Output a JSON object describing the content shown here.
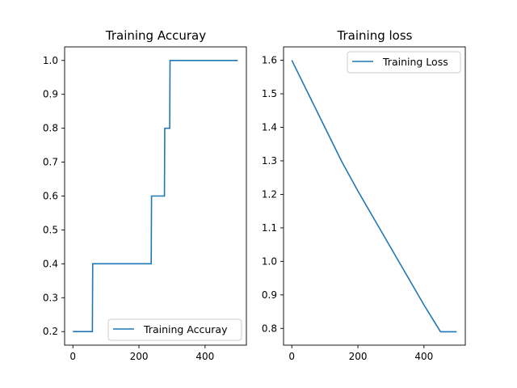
{
  "chart_data": [
    {
      "type": "line",
      "title": "Training Accuray",
      "xlim": [
        -25,
        525
      ],
      "ylim": [
        0.16,
        1.04
      ],
      "xticks": [
        0,
        200,
        400
      ],
      "yticks": [
        0.2,
        0.3,
        0.4,
        0.5,
        0.6,
        0.7,
        0.8,
        0.9,
        1.0
      ],
      "xtick_labels": [
        "0",
        "200",
        "400"
      ],
      "ytick_labels": [
        "0.2",
        "0.3",
        "0.4",
        "0.5",
        "0.6",
        "0.7",
        "0.8",
        "0.9",
        "1.0"
      ],
      "legend_loc": "lower-right",
      "color": "#1f77b4",
      "series": [
        {
          "name": "Training Accuray",
          "x": [
            0,
            59,
            60,
            237,
            238,
            277,
            278,
            293,
            294,
            499
          ],
          "y": [
            0.2,
            0.2,
            0.4,
            0.4,
            0.6,
            0.6,
            0.8,
            0.8,
            1.0,
            1.0
          ]
        }
      ]
    },
    {
      "type": "line",
      "title": "Training loss",
      "xlim": [
        -25,
        525
      ],
      "ylim": [
        0.75,
        1.64
      ],
      "xticks": [
        0,
        200,
        400
      ],
      "yticks": [
        0.8,
        0.9,
        1.0,
        1.1,
        1.2,
        1.3,
        1.4,
        1.5,
        1.6
      ],
      "xtick_labels": [
        "0",
        "200",
        "400"
      ],
      "ytick_labels": [
        "0.8",
        "0.9",
        "1.0",
        "1.1",
        "1.2",
        "1.3",
        "1.4",
        "1.5",
        "1.6"
      ],
      "legend_loc": "upper-right",
      "color": "#1f77b4",
      "series": [
        {
          "name": "Training Loss",
          "x": [
            0,
            50,
            100,
            150,
            200,
            250,
            300,
            350,
            400,
            450,
            499
          ],
          "y": [
            1.6,
            1.5,
            1.4,
            1.3,
            1.21,
            1.125,
            1.04,
            0.955,
            0.87,
            0.79,
            0.79
          ]
        }
      ]
    }
  ]
}
